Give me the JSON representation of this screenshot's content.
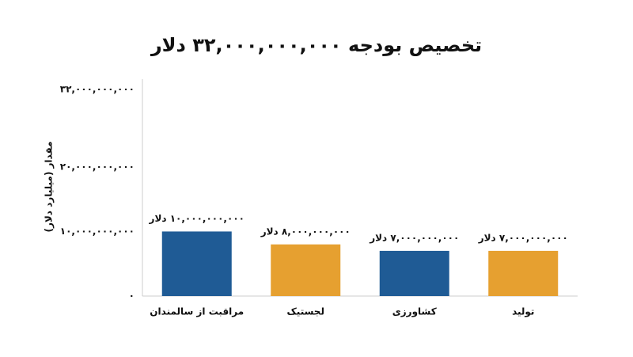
{
  "chart_data": {
    "type": "bar",
    "title": "تخصیص بودجه ۳۲,۰۰۰,۰۰۰,۰۰۰ دلار",
    "y_label": "مقدار (میلیارد دلار)",
    "categories": [
      "مراقبت از سالمندان",
      "لجستیک",
      "کشاورزی",
      "تولید"
    ],
    "values": [
      10000000000,
      8000000000,
      7000000000,
      7000000000
    ],
    "value_labels": [
      "۱۰,۰۰۰,۰۰۰,۰۰۰ دلار",
      "۸,۰۰۰,۰۰۰,۰۰۰ دلار",
      "۷,۰۰۰,۰۰۰,۰۰۰ دلار",
      "۷,۰۰۰,۰۰۰,۰۰۰ دلار"
    ],
    "colors": [
      "#1f5b95",
      "#e6a030",
      "#1f5b95",
      "#e6a030"
    ],
    "ylim": [
      0,
      32000000000
    ],
    "yticks": [
      {
        "value": 0,
        "label": "۰"
      },
      {
        "value": 10000000000,
        "label": "۱۰,۰۰۰,۰۰۰,۰۰۰"
      },
      {
        "value": 20000000000,
        "label": "۲۰,۰۰۰,۰۰۰,۰۰۰"
      },
      {
        "value": 32000000000,
        "label": "۳۲,۰۰۰,۰۰۰,۰۰۰"
      }
    ],
    "grid": false
  }
}
